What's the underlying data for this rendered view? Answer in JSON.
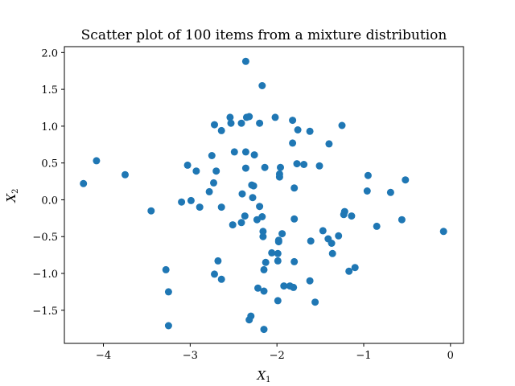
{
  "chart_data": {
    "type": "scatter",
    "title": "Scatter plot of 100 items from a mixture distribution",
    "xlabel": "X",
    "xlabel_sub": "1",
    "ylabel": "X",
    "ylabel_sub": "2",
    "xlim": [
      -4.45,
      0.15
    ],
    "ylim": [
      -1.95,
      2.08
    ],
    "xticks": [
      -4,
      -3,
      -2,
      -1,
      0
    ],
    "xtick_labels": [
      "−4",
      "−3",
      "−2",
      "−1",
      "0"
    ],
    "yticks": [
      -1.5,
      -1.0,
      -0.5,
      0.0,
      0.5,
      1.0,
      1.5,
      2.0
    ],
    "ytick_labels": [
      "−1.5",
      "−1.0",
      "−0.5",
      "0.0",
      "0.5",
      "1.0",
      "1.5",
      "2.0"
    ],
    "grid": false,
    "marker_color": "#1f77b4",
    "points": [
      [
        -2.36,
        1.88
      ],
      [
        -2.17,
        1.55
      ],
      [
        -4.23,
        0.22
      ],
      [
        -4.08,
        0.53
      ],
      [
        -3.75,
        0.34
      ],
      [
        -3.45,
        -0.15
      ],
      [
        -3.28,
        -0.95
      ],
      [
        -3.25,
        -1.25
      ],
      [
        -3.25,
        -1.71
      ],
      [
        -3.1,
        -0.03
      ],
      [
        -3.03,
        0.47
      ],
      [
        -2.99,
        -0.01
      ],
      [
        -2.93,
        0.39
      ],
      [
        -2.89,
        -0.1
      ],
      [
        -2.78,
        0.11
      ],
      [
        -2.75,
        0.6
      ],
      [
        -2.73,
        0.23
      ],
      [
        -2.72,
        1.02
      ],
      [
        -2.7,
        0.39
      ],
      [
        -2.68,
        -0.83
      ],
      [
        -2.72,
        -1.01
      ],
      [
        -2.64,
        -1.08
      ],
      [
        -2.64,
        0.94
      ],
      [
        -2.64,
        -0.1
      ],
      [
        -2.54,
        1.12
      ],
      [
        -2.53,
        1.04
      ],
      [
        -2.51,
        -0.34
      ],
      [
        -2.49,
        0.65
      ],
      [
        -2.41,
        1.04
      ],
      [
        -2.4,
        0.08
      ],
      [
        -2.41,
        -0.31
      ],
      [
        -2.37,
        -0.22
      ],
      [
        -2.36,
        0.43
      ],
      [
        -2.36,
        0.65
      ],
      [
        -2.35,
        1.12
      ],
      [
        -2.32,
        1.13
      ],
      [
        -2.29,
        0.2
      ],
      [
        -2.27,
        0.19
      ],
      [
        -2.28,
        0.03
      ],
      [
        -2.26,
        0.61
      ],
      [
        -2.23,
        -0.27
      ],
      [
        -2.2,
        -0.09
      ],
      [
        -2.2,
        1.04
      ],
      [
        -2.17,
        -0.23
      ],
      [
        -2.16,
        -0.43
      ],
      [
        -2.16,
        -0.5
      ],
      [
        -2.14,
        0.44
      ],
      [
        -2.15,
        -0.95
      ],
      [
        -2.13,
        -0.85
      ],
      [
        -2.15,
        -1.24
      ],
      [
        -2.22,
        -1.2
      ],
      [
        -2.3,
        -1.58
      ],
      [
        -2.32,
        -1.63
      ],
      [
        -2.15,
        -1.76
      ],
      [
        -2.02,
        1.12
      ],
      [
        -2.06,
        -0.72
      ],
      [
        -1.99,
        -0.73
      ],
      [
        -1.99,
        -0.83
      ],
      [
        -1.98,
        -0.57
      ],
      [
        -1.98,
        -0.55
      ],
      [
        -1.99,
        -1.37
      ],
      [
        -1.94,
        -0.46
      ],
      [
        -1.92,
        -1.17
      ],
      [
        -1.85,
        -1.17
      ],
      [
        -1.81,
        -1.19
      ],
      [
        -1.8,
        -0.84
      ],
      [
        -1.8,
        -0.26
      ],
      [
        -1.8,
        0.16
      ],
      [
        -1.97,
        0.31
      ],
      [
        -1.97,
        0.35
      ],
      [
        -1.96,
        0.44
      ],
      [
        -1.82,
        0.77
      ],
      [
        -1.82,
        1.08
      ],
      [
        -1.76,
        0.95
      ],
      [
        -1.77,
        0.49
      ],
      [
        -1.69,
        0.48
      ],
      [
        -1.62,
        0.93
      ],
      [
        -1.61,
        -0.56
      ],
      [
        -1.62,
        -1.1
      ],
      [
        -1.56,
        -1.39
      ],
      [
        -1.51,
        0.46
      ],
      [
        -1.47,
        -0.42
      ],
      [
        -1.41,
        -0.53
      ],
      [
        -1.4,
        0.76
      ],
      [
        -1.37,
        -0.59
      ],
      [
        -1.36,
        -0.73
      ],
      [
        -1.29,
        -0.49
      ],
      [
        -1.25,
        1.01
      ],
      [
        -1.23,
        -0.2
      ],
      [
        -1.22,
        -0.16
      ],
      [
        -1.17,
        -0.97
      ],
      [
        -1.14,
        -0.22
      ],
      [
        -1.1,
        -0.92
      ],
      [
        -0.96,
        0.12
      ],
      [
        -0.95,
        0.33
      ],
      [
        -0.85,
        -0.36
      ],
      [
        -0.69,
        0.1
      ],
      [
        -0.56,
        -0.27
      ],
      [
        -0.52,
        0.27
      ],
      [
        -0.08,
        -0.43
      ]
    ]
  }
}
